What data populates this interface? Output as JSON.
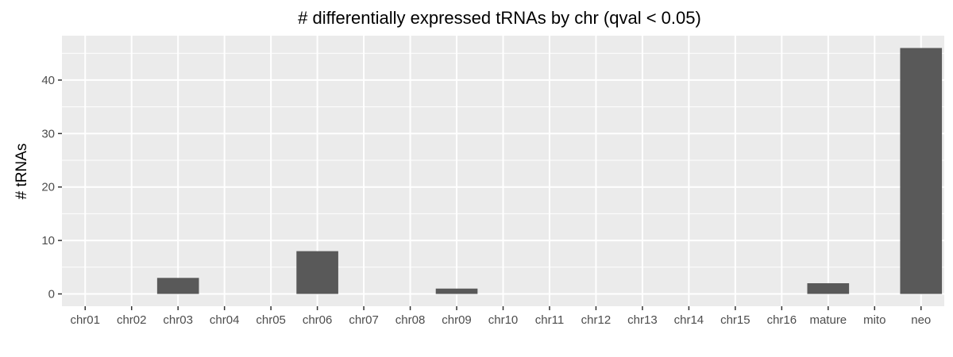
{
  "chart_data": {
    "type": "bar",
    "title": "# differentially expressed tRNAs by chr (qval < 0.05)",
    "xlabel": "",
    "ylabel": "# tRNAs",
    "categories": [
      "chr01",
      "chr02",
      "chr03",
      "chr04",
      "chr05",
      "chr06",
      "chr07",
      "chr08",
      "chr09",
      "chr10",
      "chr11",
      "chr12",
      "chr13",
      "chr14",
      "chr15",
      "chr16",
      "mature",
      "mito",
      "neo"
    ],
    "values": [
      0,
      0,
      3,
      0,
      0,
      8,
      0,
      0,
      1,
      0,
      0,
      0,
      0,
      0,
      0,
      0,
      2,
      0,
      46
    ],
    "ylim": [
      -2.3,
      48.3
    ],
    "yticks": [
      0,
      10,
      20,
      30,
      40
    ],
    "grid": true,
    "legend": "none",
    "colors": {
      "bar": "#595959",
      "panel": "#ebebeb",
      "grid": "#ffffff"
    }
  }
}
